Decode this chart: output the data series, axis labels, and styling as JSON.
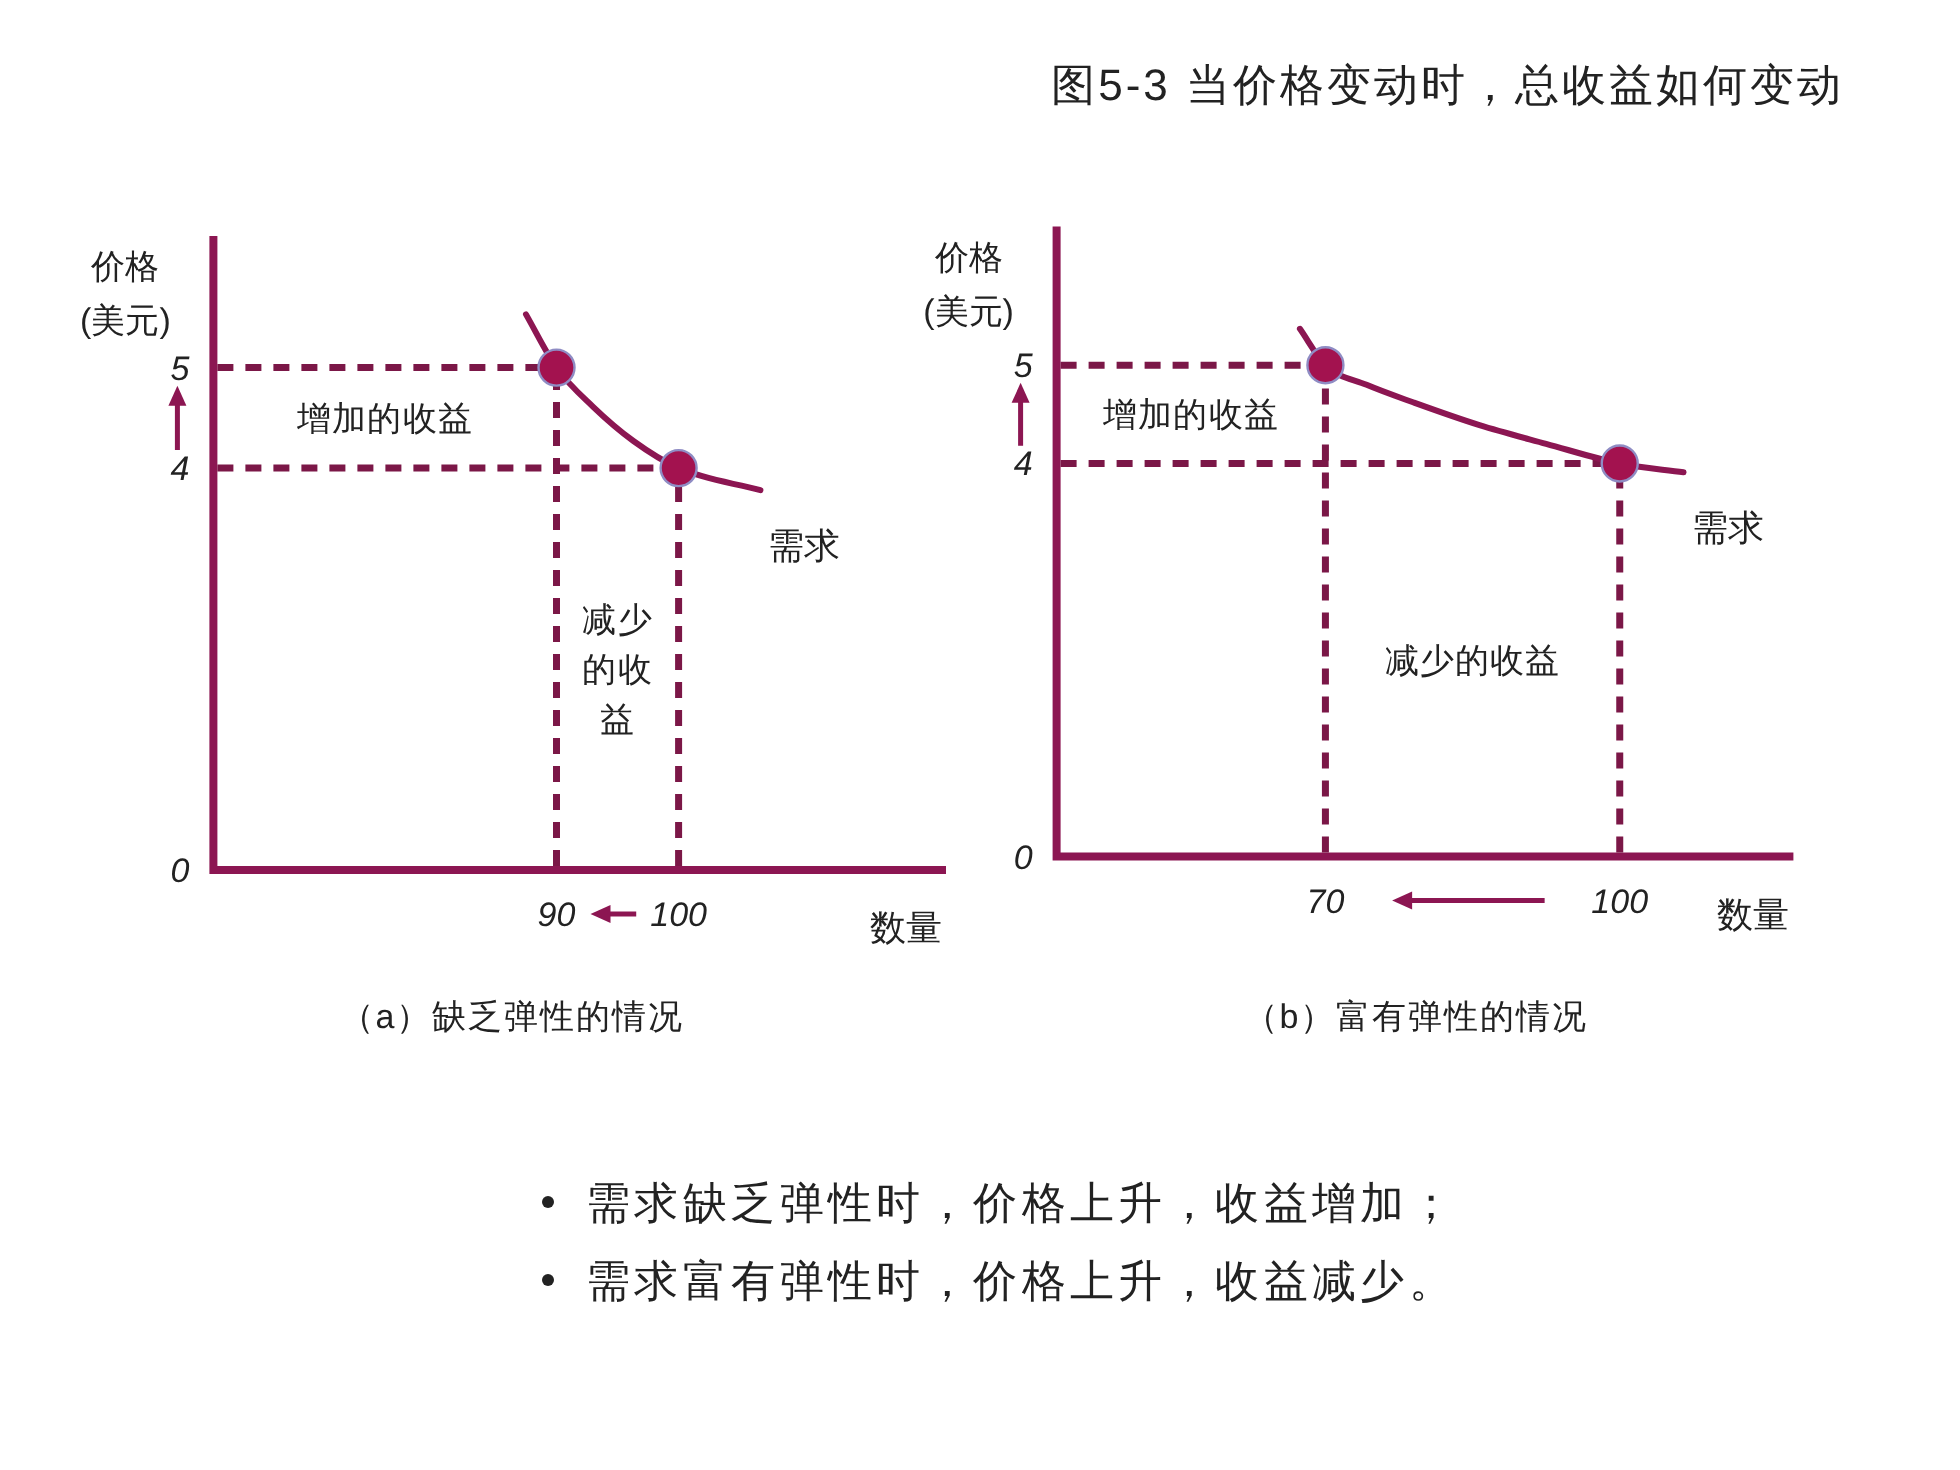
{
  "chart_data": [
    {
      "type": "line",
      "title": "（a）缺乏弹性的情况",
      "xlabel": "数量",
      "ylabel": "价格(美元)",
      "xlim": [
        61.9,
        121.9
      ],
      "ylim": [
        0,
        6.31
      ],
      "xticks": [
        90,
        100
      ],
      "yticks": [
        0,
        4,
        5
      ],
      "series": [
        {
          "name": "需求",
          "type": "line",
          "color": "#8c1652",
          "x": [
            87.5,
            90,
            93,
            96.3,
            100,
            106.7
          ],
          "values": [
            5.53,
            5,
            4.61,
            4.27,
            4,
            3.78
          ]
        },
        {
          "type": "scatter",
          "marker": "circle",
          "color": "#a3124f",
          "x": [
            90,
            100
          ],
          "values": [
            5,
            4
          ]
        }
      ],
      "ref_lines": [
        {
          "axis": "y",
          "value": 5,
          "color": "#7b1747",
          "line_style": "dashed"
        },
        {
          "axis": "y",
          "value": 4,
          "color": "#7b1747",
          "line_style": "dashed"
        },
        {
          "axis": "x",
          "value": 90,
          "color": "#7b1747",
          "line_style": "dashed"
        },
        {
          "axis": "x",
          "value": 100,
          "color": "#7b1747",
          "line_style": "dashed"
        }
      ],
      "annotations": [
        "增加的收益",
        "减少的收益"
      ]
    },
    {
      "type": "line",
      "title": "（b）富有弹性的情况",
      "xlabel": "数量",
      "ylabel": "价格(美元)",
      "xlim": [
        42.6,
        117.7
      ],
      "ylim": [
        0,
        6.41
      ],
      "xticks": [
        70,
        100
      ],
      "yticks": [
        0,
        4,
        5
      ],
      "series": [
        {
          "name": "需求",
          "type": "line",
          "color": "#8c1652",
          "x": [
            67.4,
            70,
            74.2,
            79,
            85.7,
            92.5,
            100,
            106.5
          ],
          "values": [
            5.37,
            5,
            4.8,
            4.62,
            4.39,
            4.2,
            4,
            3.91
          ]
        },
        {
          "type": "scatter",
          "marker": "circle",
          "color": "#a3124f",
          "x": [
            70,
            100
          ],
          "values": [
            5,
            4
          ]
        }
      ],
      "ref_lines": [
        {
          "axis": "y",
          "value": 5,
          "color": "#7b1747",
          "line_style": "dashed"
        },
        {
          "axis": "y",
          "value": 4,
          "color": "#7b1747",
          "line_style": "dashed"
        },
        {
          "axis": "x",
          "value": 70,
          "color": "#7b1747",
          "line_style": "dashed"
        },
        {
          "axis": "x",
          "value": 100,
          "color": "#7b1747",
          "line_style": "dashed"
        }
      ],
      "annotations": [
        "增加的收益",
        "减少的收益"
      ]
    },
    {
      "type": "other",
      "title": "图5-3 当价格变动时，总收益如何变动",
      "annotations": [
        "需求缺乏弹性时，价格上升，收益增加；",
        "需求富有弹性时，价格上升，收益减少。"
      ]
    }
  ]
}
